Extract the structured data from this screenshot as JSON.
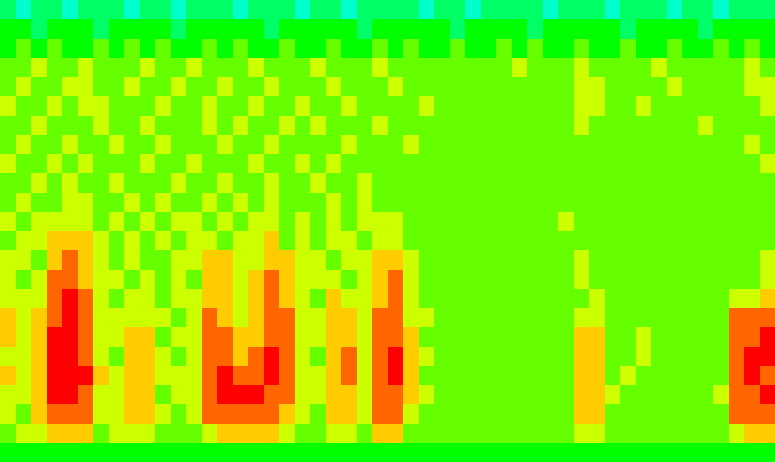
{
  "chart_data": {
    "type": "heatmap",
    "zlim": [
      0,
      10
    ],
    "tick_labels": false,
    "z": [
      [
        4,
        3,
        4,
        4,
        3,
        4,
        4,
        4,
        3,
        4,
        4,
        3,
        4,
        4,
        4,
        3,
        4,
        4,
        4,
        3,
        4,
        4,
        3,
        4,
        4,
        4,
        4,
        3,
        4,
        4,
        3,
        4,
        4,
        4,
        4,
        3,
        4,
        4,
        4,
        3,
        4,
        4,
        4,
        3,
        4,
        4,
        3,
        4,
        4,
        4
      ],
      [
        5,
        5,
        4,
        5,
        5,
        5,
        4,
        5,
        5,
        5,
        5,
        4,
        5,
        5,
        5,
        5,
        5,
        4,
        5,
        5,
        5,
        5,
        5,
        4,
        5,
        5,
        5,
        5,
        5,
        4,
        5,
        5,
        5,
        5,
        4,
        5,
        5,
        5,
        5,
        5,
        4,
        5,
        5,
        5,
        5,
        4,
        5,
        5,
        5,
        5
      ],
      [
        5,
        6,
        5,
        6,
        5,
        5,
        6,
        5,
        6,
        5,
        6,
        5,
        5,
        6,
        5,
        6,
        5,
        5,
        6,
        5,
        5,
        6,
        5,
        5,
        6,
        5,
        6,
        5,
        5,
        6,
        5,
        5,
        6,
        5,
        6,
        5,
        5,
        6,
        5,
        5,
        6,
        5,
        5,
        6,
        5,
        5,
        6,
        5,
        6,
        5
      ],
      [
        6,
        6,
        7,
        6,
        6,
        7,
        6,
        6,
        6,
        7,
        6,
        6,
        7,
        6,
        6,
        6,
        7,
        6,
        6,
        6,
        7,
        6,
        6,
        6,
        7,
        6,
        6,
        6,
        6,
        6,
        6,
        6,
        6,
        7,
        6,
        6,
        6,
        7,
        6,
        6,
        6,
        6,
        7,
        6,
        6,
        6,
        6,
        6,
        7,
        6
      ],
      [
        6,
        7,
        6,
        6,
        7,
        7,
        6,
        6,
        7,
        6,
        6,
        7,
        6,
        6,
        7,
        6,
        6,
        7,
        6,
        6,
        6,
        7,
        6,
        6,
        6,
        7,
        6,
        6,
        6,
        6,
        6,
        6,
        6,
        6,
        6,
        6,
        6,
        7,
        7,
        6,
        6,
        6,
        6,
        7,
        6,
        6,
        6,
        6,
        7,
        7
      ],
      [
        7,
        6,
        6,
        7,
        6,
        7,
        7,
        6,
        6,
        6,
        7,
        6,
        6,
        7,
        6,
        6,
        7,
        6,
        6,
        7,
        6,
        6,
        7,
        6,
        6,
        6,
        6,
        7,
        6,
        6,
        6,
        6,
        6,
        6,
        6,
        6,
        6,
        7,
        7,
        6,
        6,
        7,
        6,
        6,
        6,
        6,
        6,
        6,
        6,
        7
      ],
      [
        6,
        6,
        7,
        6,
        6,
        6,
        7,
        6,
        6,
        7,
        6,
        6,
        6,
        7,
        6,
        7,
        6,
        6,
        7,
        6,
        7,
        6,
        6,
        6,
        7,
        6,
        6,
        6,
        6,
        6,
        6,
        6,
        6,
        6,
        6,
        6,
        6,
        7,
        6,
        6,
        6,
        6,
        6,
        6,
        6,
        7,
        6,
        6,
        6,
        6
      ],
      [
        6,
        7,
        6,
        6,
        7,
        6,
        6,
        7,
        6,
        6,
        7,
        6,
        6,
        6,
        7,
        6,
        6,
        7,
        6,
        6,
        6,
        6,
        7,
        6,
        6,
        6,
        7,
        6,
        6,
        6,
        6,
        6,
        6,
        6,
        6,
        6,
        6,
        6,
        6,
        6,
        6,
        6,
        6,
        6,
        6,
        6,
        6,
        6,
        7,
        6
      ],
      [
        7,
        6,
        6,
        7,
        6,
        7,
        6,
        6,
        6,
        7,
        6,
        6,
        7,
        6,
        6,
        6,
        7,
        6,
        6,
        7,
        6,
        7,
        6,
        6,
        6,
        6,
        6,
        6,
        6,
        6,
        6,
        6,
        6,
        6,
        6,
        6,
        6,
        6,
        6,
        6,
        6,
        6,
        6,
        6,
        6,
        6,
        6,
        6,
        6,
        7
      ],
      [
        6,
        6,
        7,
        6,
        7,
        6,
        6,
        7,
        6,
        6,
        6,
        7,
        6,
        6,
        7,
        6,
        6,
        7,
        6,
        6,
        7,
        6,
        6,
        7,
        6,
        6,
        6,
        6,
        6,
        6,
        6,
        6,
        6,
        6,
        6,
        6,
        6,
        6,
        6,
        6,
        6,
        6,
        6,
        6,
        6,
        6,
        6,
        6,
        6,
        6
      ],
      [
        6,
        7,
        6,
        6,
        7,
        7,
        6,
        6,
        7,
        6,
        7,
        6,
        6,
        7,
        6,
        7,
        6,
        7,
        6,
        6,
        6,
        7,
        6,
        7,
        6,
        6,
        6,
        6,
        6,
        6,
        6,
        6,
        6,
        6,
        6,
        6,
        6,
        6,
        6,
        6,
        6,
        6,
        6,
        6,
        6,
        6,
        6,
        6,
        6,
        6
      ],
      [
        7,
        6,
        7,
        7,
        7,
        7,
        6,
        7,
        6,
        7,
        6,
        7,
        7,
        6,
        7,
        6,
        7,
        7,
        6,
        7,
        6,
        7,
        6,
        7,
        7,
        7,
        6,
        6,
        6,
        6,
        6,
        6,
        6,
        6,
        6,
        6,
        7,
        6,
        6,
        6,
        6,
        6,
        6,
        6,
        6,
        6,
        6,
        6,
        6,
        6
      ],
      [
        6,
        7,
        7,
        8,
        8,
        8,
        7,
        6,
        7,
        6,
        7,
        6,
        7,
        7,
        6,
        7,
        7,
        8,
        6,
        7,
        6,
        7,
        7,
        6,
        7,
        7,
        6,
        6,
        6,
        6,
        6,
        6,
        6,
        6,
        6,
        6,
        6,
        6,
        6,
        6,
        6,
        6,
        6,
        6,
        6,
        6,
        6,
        6,
        6,
        6
      ],
      [
        7,
        7,
        6,
        8,
        9,
        8,
        7,
        6,
        7,
        6,
        6,
        7,
        7,
        8,
        8,
        7,
        7,
        8,
        8,
        7,
        7,
        6,
        7,
        7,
        8,
        8,
        7,
        6,
        6,
        6,
        6,
        6,
        6,
        6,
        6,
        6,
        6,
        7,
        6,
        6,
        6,
        6,
        6,
        6,
        6,
        6,
        6,
        6,
        6,
        7
      ],
      [
        7,
        6,
        7,
        9,
        9,
        8,
        7,
        7,
        6,
        7,
        6,
        7,
        6,
        8,
        8,
        7,
        8,
        9,
        8,
        7,
        7,
        7,
        6,
        7,
        8,
        9,
        7,
        6,
        6,
        6,
        6,
        6,
        6,
        6,
        6,
        6,
        6,
        7,
        6,
        6,
        6,
        6,
        6,
        6,
        6,
        6,
        6,
        6,
        6,
        7
      ],
      [
        7,
        7,
        7,
        9,
        10,
        9,
        7,
        6,
        7,
        7,
        6,
        7,
        7,
        8,
        8,
        7,
        8,
        9,
        8,
        7,
        6,
        8,
        7,
        7,
        8,
        9,
        7,
        6,
        6,
        6,
        6,
        6,
        6,
        6,
        6,
        6,
        6,
        6,
        7,
        6,
        6,
        6,
        6,
        6,
        6,
        6,
        6,
        7,
        7,
        8
      ],
      [
        8,
        7,
        8,
        9,
        10,
        9,
        7,
        7,
        7,
        7,
        7,
        6,
        7,
        9,
        8,
        7,
        8,
        9,
        9,
        7,
        7,
        8,
        8,
        7,
        9,
        9,
        7,
        7,
        6,
        6,
        6,
        6,
        6,
        6,
        6,
        6,
        6,
        7,
        7,
        6,
        6,
        6,
        6,
        6,
        6,
        6,
        6,
        9,
        9,
        9
      ],
      [
        8,
        7,
        8,
        10,
        10,
        9,
        7,
        7,
        8,
        8,
        6,
        7,
        7,
        9,
        9,
        8,
        8,
        9,
        9,
        7,
        7,
        8,
        8,
        7,
        9,
        9,
        8,
        6,
        6,
        6,
        6,
        6,
        6,
        6,
        6,
        6,
        6,
        8,
        8,
        6,
        6,
        7,
        6,
        6,
        6,
        6,
        6,
        9,
        9,
        10
      ],
      [
        7,
        7,
        8,
        10,
        10,
        9,
        7,
        6,
        8,
        8,
        7,
        6,
        7,
        9,
        9,
        8,
        9,
        10,
        9,
        7,
        6,
        8,
        9,
        7,
        9,
        10,
        8,
        7,
        6,
        6,
        6,
        6,
        6,
        6,
        6,
        6,
        6,
        8,
        8,
        6,
        6,
        7,
        6,
        6,
        6,
        6,
        6,
        9,
        10,
        10
      ],
      [
        8,
        7,
        8,
        10,
        10,
        10,
        8,
        7,
        8,
        8,
        7,
        7,
        7,
        9,
        10,
        9,
        9,
        10,
        9,
        7,
        7,
        8,
        9,
        7,
        9,
        10,
        8,
        6,
        6,
        6,
        6,
        6,
        6,
        6,
        6,
        6,
        6,
        8,
        8,
        6,
        7,
        6,
        6,
        6,
        6,
        6,
        6,
        9,
        10,
        9
      ],
      [
        7,
        7,
        8,
        10,
        10,
        9,
        7,
        7,
        8,
        8,
        6,
        7,
        7,
        9,
        10,
        10,
        10,
        9,
        9,
        7,
        7,
        8,
        8,
        7,
        9,
        9,
        8,
        7,
        6,
        6,
        6,
        6,
        6,
        6,
        6,
        6,
        6,
        8,
        8,
        7,
        6,
        6,
        6,
        6,
        6,
        6,
        7,
        9,
        9,
        10
      ],
      [
        7,
        6,
        8,
        9,
        9,
        9,
        7,
        7,
        8,
        8,
        7,
        6,
        7,
        9,
        9,
        9,
        9,
        9,
        8,
        7,
        6,
        8,
        8,
        7,
        9,
        9,
        7,
        6,
        6,
        6,
        6,
        6,
        6,
        6,
        6,
        6,
        6,
        8,
        8,
        6,
        6,
        6,
        6,
        6,
        6,
        6,
        6,
        9,
        9,
        9
      ],
      [
        6,
        7,
        7,
        8,
        8,
        8,
        6,
        7,
        7,
        7,
        6,
        6,
        6,
        7,
        8,
        8,
        8,
        8,
        7,
        6,
        6,
        7,
        7,
        6,
        8,
        8,
        6,
        6,
        6,
        6,
        6,
        6,
        6,
        6,
        6,
        6,
        6,
        7,
        7,
        6,
        6,
        6,
        6,
        6,
        6,
        6,
        6,
        7,
        8,
        8
      ],
      [
        5,
        5,
        5,
        5,
        5,
        5,
        5,
        5,
        5,
        5,
        5,
        5,
        5,
        5,
        5,
        5,
        5,
        5,
        5,
        5,
        5,
        5,
        5,
        5,
        5,
        5,
        5,
        5,
        5,
        5,
        5,
        5,
        5,
        5,
        5,
        5,
        5,
        5,
        5,
        5,
        5,
        5,
        5,
        5,
        5,
        5,
        5,
        5,
        5,
        5
      ]
    ]
  }
}
